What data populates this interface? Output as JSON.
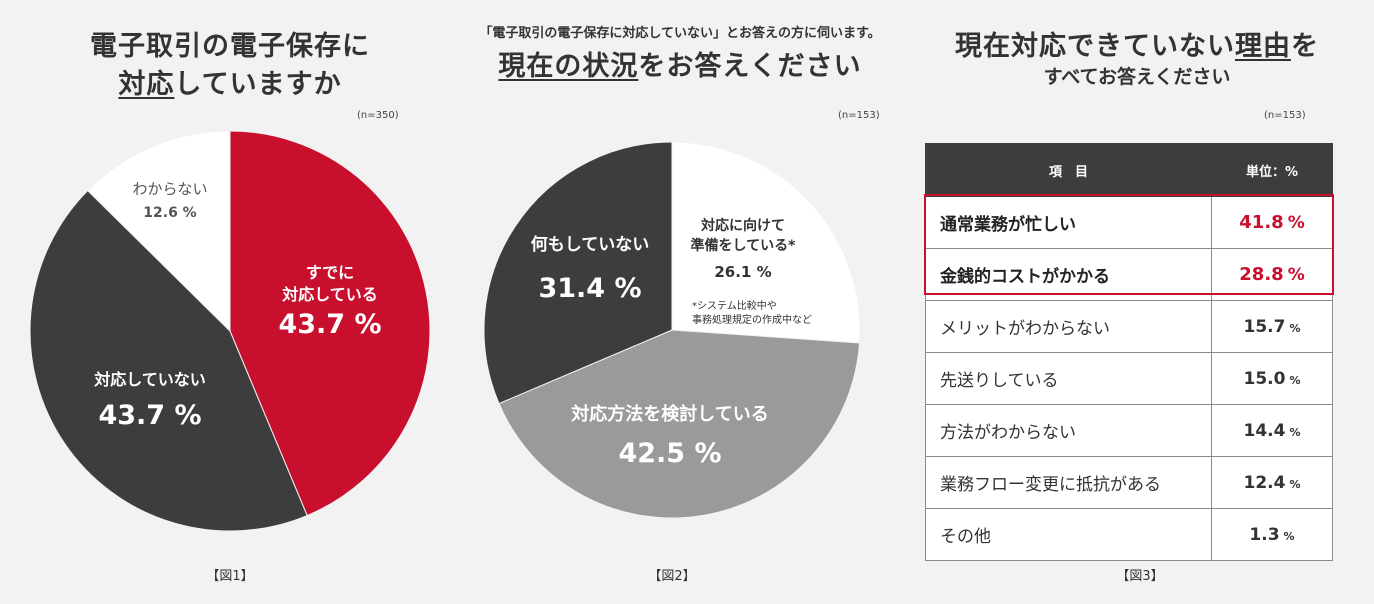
{
  "figure1": {
    "title_line1": "電子取引の電子保存に",
    "title_line2_underlined": "対応",
    "title_line2_rest": "していますか",
    "n": "(n=350)",
    "fig_label": "【図1】"
  },
  "figure2": {
    "title_line1": "「電子取引の電子保存に対応していない」とお答えの方に伺います。",
    "title_line2_underlined": "現在の状況",
    "title_line2_rest": "をお答えください",
    "n": "(n=153)",
    "footnote_line1": "*システム比較中や",
    "footnote_line2": "事務処理規定の作成中など",
    "fig_label": "【図2】"
  },
  "figure3": {
    "title_line1_a": "現在対応できていない",
    "title_line1_underlined": "理由",
    "title_line1_b": "を",
    "title_line2": "すべてお答えください",
    "n": "(n=153)",
    "col_item": "項　目",
    "col_unit": "単位：%",
    "fig_label": "【図3】"
  },
  "colors": {
    "red": "#c8102e",
    "dark": "#3d3d3d",
    "gray": "#9a9a9a",
    "white": "#ffffff"
  },
  "chart_data": [
    {
      "type": "pie",
      "slices": [
        {
          "label_line1": "すでに",
          "label_line2": "対応している",
          "value": 43.7,
          "value_text": "43.7 %",
          "color": "#c8102e"
        },
        {
          "label_line1": "対応していない",
          "label_line2": "",
          "value": 43.7,
          "value_text": "43.7 %",
          "color": "#3d3d3d"
        },
        {
          "label_line1": "わからない",
          "label_line2": "",
          "value": 12.6,
          "value_text": "12.6 %",
          "color": "#ffffff"
        }
      ]
    },
    {
      "type": "pie",
      "slices": [
        {
          "label_line1": "対応に向けて",
          "label_line2": "準備をしている*",
          "value": 26.1,
          "value_text": "26.1 %",
          "color": "#ffffff"
        },
        {
          "label_line1": "対応方法を検討している",
          "label_line2": "",
          "value": 42.5,
          "value_text": "42.5 %",
          "color": "#9a9a9a"
        },
        {
          "label_line1": "何もしていない",
          "label_line2": "",
          "value": 31.4,
          "value_text": "31.4 %",
          "color": "#3d3d3d"
        }
      ]
    },
    {
      "type": "table",
      "columns": [
        "項　目",
        "単位：%"
      ],
      "rows": [
        {
          "item": "通常業務が忙しい",
          "value": 41.8,
          "value_text": "41.8",
          "unit": "%",
          "highlight": true
        },
        {
          "item": "金銭的コストがかかる",
          "value": 28.8,
          "value_text": "28.8",
          "unit": "%",
          "highlight": true
        },
        {
          "item": "メリットがわからない",
          "value": 15.7,
          "value_text": "15.7",
          "unit": "%",
          "highlight": false
        },
        {
          "item": "先送りしている",
          "value": 15.0,
          "value_text": "15.0",
          "unit": "%",
          "highlight": false
        },
        {
          "item": "方法がわからない",
          "value": 14.4,
          "value_text": "14.4",
          "unit": "%",
          "highlight": false
        },
        {
          "item": "業務フロー変更に抵抗がある",
          "value": 12.4,
          "value_text": "12.4",
          "unit": "%",
          "highlight": false
        },
        {
          "item": "その他",
          "value": 1.3,
          "value_text": "1.3",
          "unit": "%",
          "highlight": false
        }
      ]
    }
  ]
}
